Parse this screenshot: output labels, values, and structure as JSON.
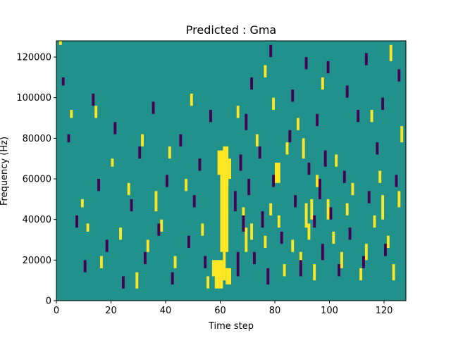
{
  "chart_data": {
    "type": "heatmap",
    "title": "Predicted : Gma",
    "xlabel": "Time step",
    "ylabel": "Frequency (Hz)",
    "xlim": [
      0,
      128
    ],
    "ylim": [
      0,
      128000
    ],
    "x_ticks": [
      0,
      20,
      40,
      60,
      80,
      100,
      120
    ],
    "y_ticks": [
      0,
      20000,
      40000,
      60000,
      80000,
      100000,
      120000
    ],
    "x_tick_labels": [
      "0",
      "20",
      "40",
      "60",
      "80",
      "100",
      "120"
    ],
    "y_tick_labels": [
      "0",
      "20000",
      "40000",
      "60000",
      "80000",
      "100000",
      "120000"
    ],
    "grid": false,
    "background_value": 0,
    "colors": {
      "low": "#440154",
      "mid": "#21918c",
      "high": "#fde725"
    },
    "cells_format": "[time_step_start, time_step_end, freq_bin_start, freq_bin_end, value]; 64 frequency bins of 2000 Hz; value -1=low, 1=high",
    "cells": [
      [
        59,
        62,
        31,
        37,
        1
      ],
      [
        60,
        63,
        12,
        31,
        1
      ],
      [
        61,
        63,
        28,
        38,
        1
      ],
      [
        57,
        61,
        6,
        10,
        1
      ],
      [
        58,
        61,
        3,
        8,
        1
      ],
      [
        62,
        64,
        4,
        8,
        1
      ],
      [
        63,
        64,
        30,
        35,
        1
      ],
      [
        61,
        62,
        5,
        12,
        1
      ],
      [
        68,
        69,
        19,
        23,
        1
      ],
      [
        69,
        70,
        12,
        18,
        1
      ],
      [
        71,
        72,
        15,
        19,
        1
      ],
      [
        76,
        77,
        13,
        16,
        1
      ],
      [
        78,
        79,
        21,
        24,
        1
      ],
      [
        80,
        82,
        29,
        34,
        1
      ],
      [
        81,
        82,
        18,
        21,
        1
      ],
      [
        83,
        84,
        6,
        9,
        1
      ],
      [
        86,
        87,
        12,
        15,
        1
      ],
      [
        89,
        90,
        9,
        12,
        1
      ],
      [
        90,
        91,
        35,
        40,
        1
      ],
      [
        91,
        92,
        18,
        24,
        1
      ],
      [
        92,
        93,
        15,
        19,
        1
      ],
      [
        93,
        94,
        20,
        25,
        1
      ],
      [
        94,
        95,
        5,
        9,
        1
      ],
      [
        95,
        96,
        28,
        31,
        1
      ],
      [
        99,
        100,
        20,
        25,
        1
      ],
      [
        101,
        102,
        14,
        17,
        1
      ],
      [
        104,
        105,
        8,
        12,
        1
      ],
      [
        106,
        107,
        21,
        24,
        1
      ],
      [
        111,
        112,
        5,
        8,
        1
      ],
      [
        113,
        114,
        10,
        14,
        1
      ],
      [
        116,
        117,
        18,
        21,
        1
      ],
      [
        118,
        119,
        29,
        32,
        1
      ],
      [
        119,
        120,
        20,
        26,
        1
      ],
      [
        121,
        122,
        13,
        16,
        1
      ],
      [
        123,
        124,
        5,
        9,
        1
      ],
      [
        125,
        126,
        23,
        27,
        1
      ],
      [
        1,
        2,
        63,
        64,
        1
      ],
      [
        5,
        6,
        45,
        47,
        1
      ],
      [
        9,
        10,
        23,
        25,
        1
      ],
      [
        11,
        12,
        17,
        19,
        1
      ],
      [
        14,
        15,
        45,
        48,
        1
      ],
      [
        16,
        17,
        8,
        11,
        1
      ],
      [
        20,
        21,
        33,
        35,
        1
      ],
      [
        23,
        24,
        15,
        18,
        1
      ],
      [
        26,
        27,
        26,
        29,
        1
      ],
      [
        29,
        30,
        3,
        7,
        1
      ],
      [
        31,
        32,
        38,
        41,
        1
      ],
      [
        33,
        34,
        12,
        15,
        1
      ],
      [
        36,
        37,
        22,
        27,
        1
      ],
      [
        38,
        39,
        17,
        20,
        1
      ],
      [
        41,
        42,
        35,
        38,
        1
      ],
      [
        43,
        44,
        8,
        11,
        1
      ],
      [
        47,
        48,
        27,
        30,
        1
      ],
      [
        49,
        50,
        48,
        51,
        1
      ],
      [
        53,
        54,
        16,
        19,
        1
      ],
      [
        55,
        56,
        3,
        6,
        1
      ],
      [
        66,
        67,
        45,
        48,
        1
      ],
      [
        73,
        74,
        38,
        41,
        1
      ],
      [
        76,
        77,
        55,
        58,
        1
      ],
      [
        79,
        80,
        47,
        50,
        1
      ],
      [
        84,
        85,
        36,
        39,
        1
      ],
      [
        88,
        89,
        42,
        45,
        1
      ],
      [
        97,
        98,
        52,
        55,
        1
      ],
      [
        102,
        103,
        33,
        36,
        1
      ],
      [
        108,
        109,
        26,
        29,
        1
      ],
      [
        115,
        116,
        44,
        47,
        1
      ],
      [
        122,
        123,
        59,
        63,
        1
      ],
      [
        126,
        127,
        39,
        43,
        1
      ],
      [
        65,
        66,
        22,
        27,
        -1
      ],
      [
        66,
        67,
        6,
        12,
        -1
      ],
      [
        67,
        68,
        32,
        36,
        -1
      ],
      [
        68,
        69,
        17,
        21,
        -1
      ],
      [
        69,
        70,
        42,
        46,
        -1
      ],
      [
        70,
        71,
        26,
        30,
        -1
      ],
      [
        72,
        73,
        9,
        12,
        -1
      ],
      [
        74,
        75,
        35,
        38,
        -1
      ],
      [
        75,
        76,
        18,
        22,
        -1
      ],
      [
        77,
        78,
        4,
        8,
        -1
      ],
      [
        79,
        80,
        28,
        31,
        -1
      ],
      [
        82,
        83,
        14,
        17,
        -1
      ],
      [
        85,
        86,
        39,
        42,
        -1
      ],
      [
        87,
        88,
        23,
        26,
        -1
      ],
      [
        89,
        90,
        6,
        10,
        -1
      ],
      [
        92,
        93,
        31,
        34,
        -1
      ],
      [
        94,
        95,
        18,
        21,
        -1
      ],
      [
        96,
        97,
        25,
        30,
        -1
      ],
      [
        97,
        98,
        10,
        14,
        -1
      ],
      [
        98,
        99,
        33,
        37,
        -1
      ],
      [
        100,
        101,
        20,
        23,
        -1
      ],
      [
        103,
        104,
        6,
        9,
        -1
      ],
      [
        105,
        106,
        29,
        32,
        -1
      ],
      [
        107,
        108,
        15,
        18,
        -1
      ],
      [
        110,
        111,
        44,
        47,
        -1
      ],
      [
        112,
        113,
        8,
        11,
        -1
      ],
      [
        114,
        115,
        24,
        27,
        -1
      ],
      [
        117,
        118,
        36,
        39,
        -1
      ],
      [
        120,
        121,
        11,
        14,
        -1
      ],
      [
        124,
        125,
        28,
        31,
        -1
      ],
      [
        2,
        3,
        53,
        55,
        -1
      ],
      [
        4,
        5,
        39,
        41,
        -1
      ],
      [
        7,
        8,
        18,
        21,
        -1
      ],
      [
        10,
        11,
        7,
        10,
        -1
      ],
      [
        13,
        14,
        48,
        51,
        -1
      ],
      [
        15,
        16,
        27,
        30,
        -1
      ],
      [
        18,
        19,
        12,
        15,
        -1
      ],
      [
        21,
        22,
        41,
        44,
        -1
      ],
      [
        24,
        25,
        3,
        6,
        -1
      ],
      [
        27,
        28,
        22,
        25,
        -1
      ],
      [
        30,
        31,
        35,
        38,
        -1
      ],
      [
        32,
        33,
        9,
        12,
        -1
      ],
      [
        35,
        36,
        46,
        49,
        -1
      ],
      [
        37,
        38,
        16,
        19,
        -1
      ],
      [
        40,
        41,
        28,
        31,
        -1
      ],
      [
        42,
        43,
        4,
        7,
        -1
      ],
      [
        45,
        46,
        38,
        41,
        -1
      ],
      [
        48,
        49,
        13,
        16,
        -1
      ],
      [
        50,
        51,
        23,
        26,
        -1
      ],
      [
        52,
        53,
        32,
        35,
        -1
      ],
      [
        54,
        55,
        8,
        11,
        -1
      ],
      [
        56,
        57,
        44,
        47,
        -1
      ],
      [
        71,
        72,
        52,
        55,
        -1
      ],
      [
        78,
        79,
        60,
        63,
        -1
      ],
      [
        86,
        87,
        49,
        52,
        -1
      ],
      [
        91,
        92,
        57,
        60,
        -1
      ],
      [
        95,
        96,
        43,
        46,
        -1
      ],
      [
        99,
        100,
        56,
        59,
        -1
      ],
      [
        106,
        107,
        50,
        53,
        -1
      ],
      [
        113,
        114,
        58,
        61,
        -1
      ],
      [
        119,
        120,
        47,
        50,
        -1
      ],
      [
        125,
        126,
        54,
        57,
        -1
      ]
    ]
  }
}
